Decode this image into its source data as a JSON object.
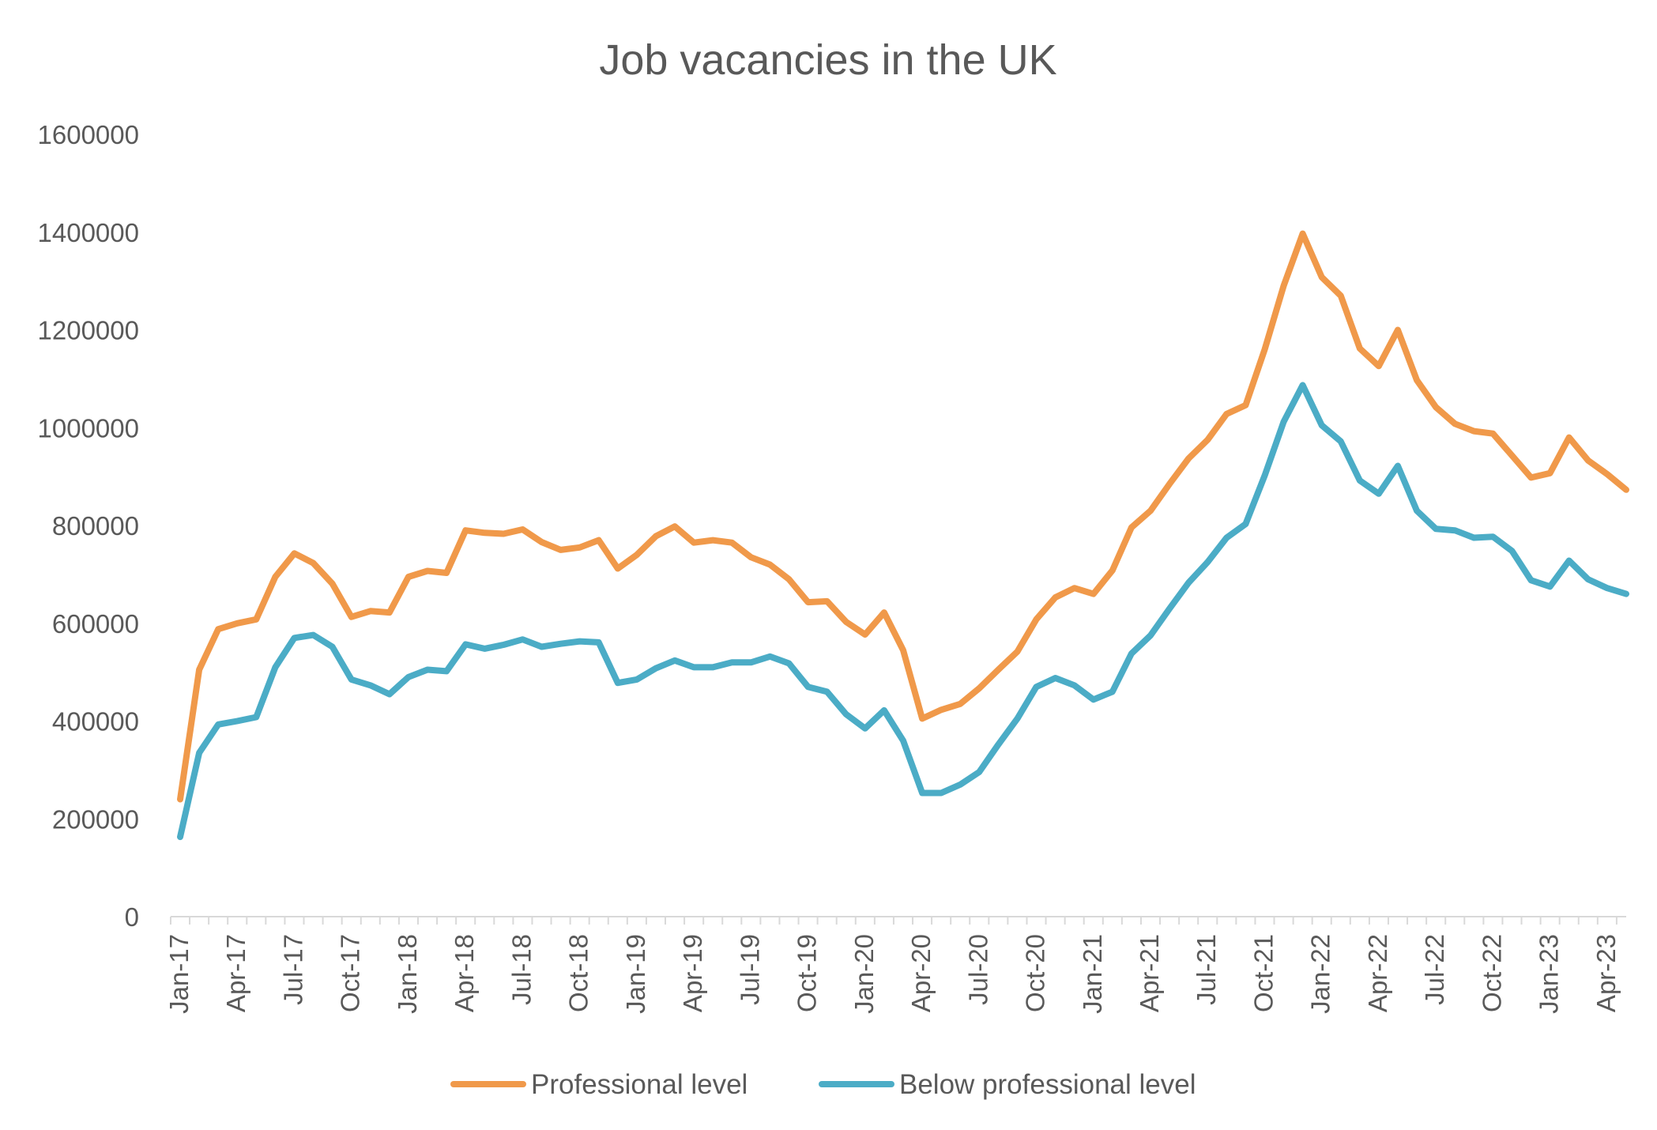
{
  "chart_data": {
    "type": "line",
    "title": "Job vacancies in the UK",
    "xlabel": "",
    "ylabel": "",
    "ylim": [
      0,
      1600000
    ],
    "yticks": [
      "0",
      "200000",
      "400000",
      "600000",
      "800000",
      "1000000",
      "1200000",
      "1400000",
      "1600000"
    ],
    "xticks": [
      "Jan-17",
      "Apr-17",
      "Jul-17",
      "Oct-17",
      "Jan-18",
      "Apr-18",
      "Jul-18",
      "Oct-18",
      "Jan-19",
      "Apr-19",
      "Jul-19",
      "Oct-19",
      "Jan-20",
      "Apr-20",
      "Jul-20",
      "Oct-20",
      "Jan-21",
      "Apr-21",
      "Jul-21",
      "Oct-21",
      "Jan-22",
      "Apr-22",
      "Jul-22",
      "Oct-22",
      "Jan-23",
      "Apr-23"
    ],
    "legend_position": "bottom",
    "grid": false,
    "x_start": "Jan-17",
    "series": [
      {
        "name": "Professional level",
        "color": "#F0994A",
        "values": [
          240000,
          505000,
          588000,
          600000,
          608000,
          695000,
          743000,
          723000,
          681000,
          613000,
          625000,
          622000,
          695000,
          707000,
          703000,
          790000,
          785000,
          783000,
          792000,
          766000,
          750000,
          755000,
          770000,
          712000,
          740000,
          778000,
          798000,
          765000,
          770000,
          765000,
          735000,
          720000,
          690000,
          643000,
          645000,
          603000,
          577000,
          622000,
          545000,
          405000,
          423000,
          435000,
          467000,
          505000,
          542000,
          608000,
          653000,
          672000,
          660000,
          708000,
          796000,
          830000,
          885000,
          937000,
          975000,
          1028000,
          1046000,
          1160000,
          1290000,
          1397000,
          1308000,
          1270000,
          1162000,
          1126000,
          1200000,
          1097000,
          1042000,
          1008000,
          993000,
          988000,
          943000,
          898000,
          907000,
          980000,
          933000,
          905000,
          873000
        ]
      },
      {
        "name": "Below professional level",
        "color": "#4BACC6",
        "values": [
          163000,
          335000,
          393000,
          400000,
          408000,
          510000,
          570000,
          576000,
          552000,
          485000,
          473000,
          455000,
          490000,
          505000,
          502000,
          557000,
          548000,
          556000,
          567000,
          552000,
          558000,
          563000,
          561000,
          478000,
          485000,
          508000,
          524000,
          510000,
          510000,
          520000,
          520000,
          532000,
          518000,
          470000,
          460000,
          414000,
          385000,
          422000,
          360000,
          253000,
          253000,
          270000,
          296000,
          352000,
          405000,
          470000,
          488000,
          473000,
          444000,
          460000,
          538000,
          575000,
          630000,
          683000,
          725000,
          775000,
          803000,
          902000,
          1012000,
          1087000,
          1005000,
          972000,
          892000,
          865000,
          922000,
          830000,
          793000,
          790000,
          775000,
          777000,
          748000,
          688000,
          675000,
          728000,
          690000,
          672000,
          660000
        ]
      }
    ]
  }
}
